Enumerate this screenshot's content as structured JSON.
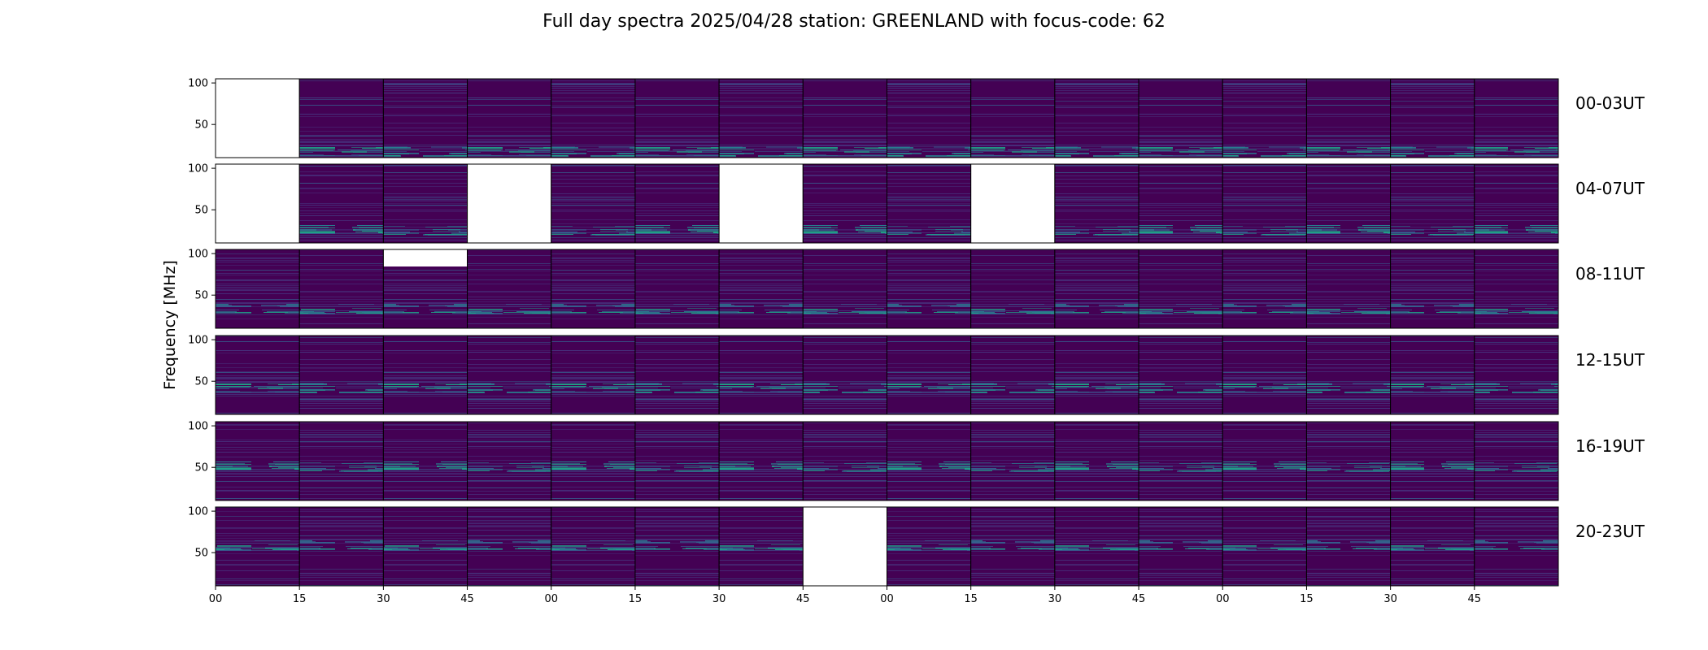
{
  "chart_data": {
    "type": "heatmap",
    "title": "Full day spectra 2025/04/28 station: GREENLAND with focus-code: 62",
    "ylabel": "Frequency [MHz]",
    "y_ticks": [
      "100",
      "50"
    ],
    "ylim": [
      10,
      105
    ],
    "x_ticks": [
      "00",
      "15",
      "30",
      "45",
      "00",
      "15",
      "30",
      "45",
      "00",
      "15",
      "30",
      "45",
      "00",
      "15",
      "30",
      "45"
    ],
    "colormap": [
      "#440154",
      "#46337e",
      "#365c8d",
      "#277f8e",
      "#1fa187",
      "#4ac16d",
      "#a0da39"
    ],
    "rows": [
      {
        "label": "00-03UT",
        "missing": [
          0
        ],
        "partial": []
      },
      {
        "label": "04-07UT",
        "missing": [
          0,
          3,
          6,
          9
        ],
        "partial": []
      },
      {
        "label": "08-11UT",
        "missing": [],
        "partial": [
          2
        ]
      },
      {
        "label": "12-15UT",
        "missing": [],
        "partial": []
      },
      {
        "label": "16-19UT",
        "missing": [],
        "partial": []
      },
      {
        "label": "20-23UT",
        "missing": [
          7
        ],
        "partial": []
      }
    ]
  }
}
